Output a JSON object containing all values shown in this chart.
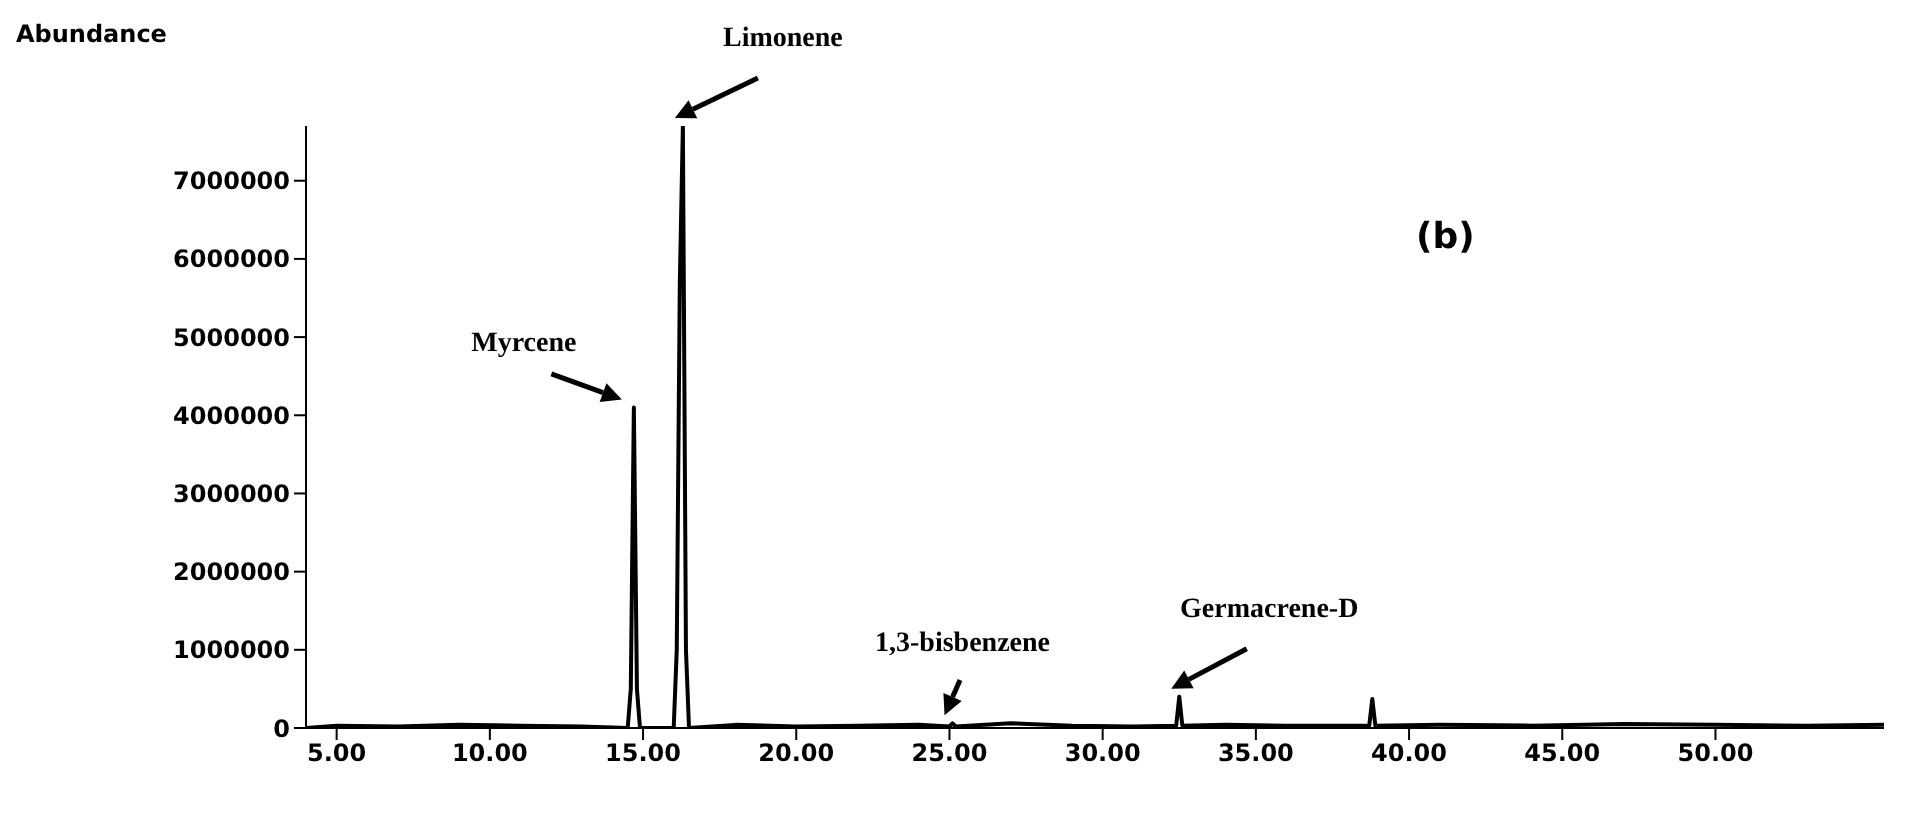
{
  "chart_data": {
    "type": "line",
    "ylabel": "Abundance",
    "x": [
      4,
      5,
      7,
      9,
      11,
      13,
      14.5,
      14.6,
      14.7,
      14.8,
      14.9,
      16.0,
      16.1,
      16.2,
      16.3,
      16.4,
      16.5,
      18,
      20,
      22,
      24,
      25.0,
      25.1,
      25.2,
      27,
      29,
      31,
      32.4,
      32.5,
      32.6,
      34,
      36,
      38.7,
      38.8,
      38.9,
      41,
      44,
      47,
      50,
      53,
      55.5
    ],
    "values": [
      0,
      30000,
      20000,
      40000,
      30000,
      20000,
      0,
      500000,
      4100000,
      500000,
      0,
      0,
      1000000,
      5700000,
      7700000,
      1000000,
      0,
      40000,
      20000,
      30000,
      40000,
      20000,
      60000,
      20000,
      60000,
      30000,
      20000,
      30000,
      400000,
      30000,
      40000,
      30000,
      30000,
      370000,
      30000,
      40000,
      30000,
      50000,
      40000,
      30000,
      40000
    ],
    "color": "#000000",
    "xlim": [
      4,
      55.5
    ],
    "xticks": [
      {
        "value": 5,
        "label": "5.00"
      },
      {
        "value": 10,
        "label": "10.00"
      },
      {
        "value": 15,
        "label": "15.00"
      },
      {
        "value": 20,
        "label": "20.00"
      },
      {
        "value": 25,
        "label": "25.00"
      },
      {
        "value": 30,
        "label": "30.00"
      },
      {
        "value": 35,
        "label": "35.00"
      },
      {
        "value": 40,
        "label": "40.00"
      },
      {
        "value": 45,
        "label": "45.00"
      },
      {
        "value": 50,
        "label": "50.00"
      }
    ],
    "ylim": [
      0,
      7700000
    ],
    "yticks": [
      0,
      1000000,
      2000000,
      3000000,
      4000000,
      5000000,
      6000000,
      7000000
    ],
    "grid": false,
    "marker": "none",
    "line_style": "solid",
    "annotations": [
      {
        "text": "Myrcene",
        "x": 14.7,
        "y": 4100000
      },
      {
        "text": "Limonene",
        "x": 16.3,
        "y": 7700000
      },
      {
        "text": "1,3-bisbenzene",
        "x": 25.1,
        "y": 60000
      },
      {
        "text": "Germacrene-D",
        "x": 32.5,
        "y": 400000
      },
      "(b)"
    ]
  }
}
